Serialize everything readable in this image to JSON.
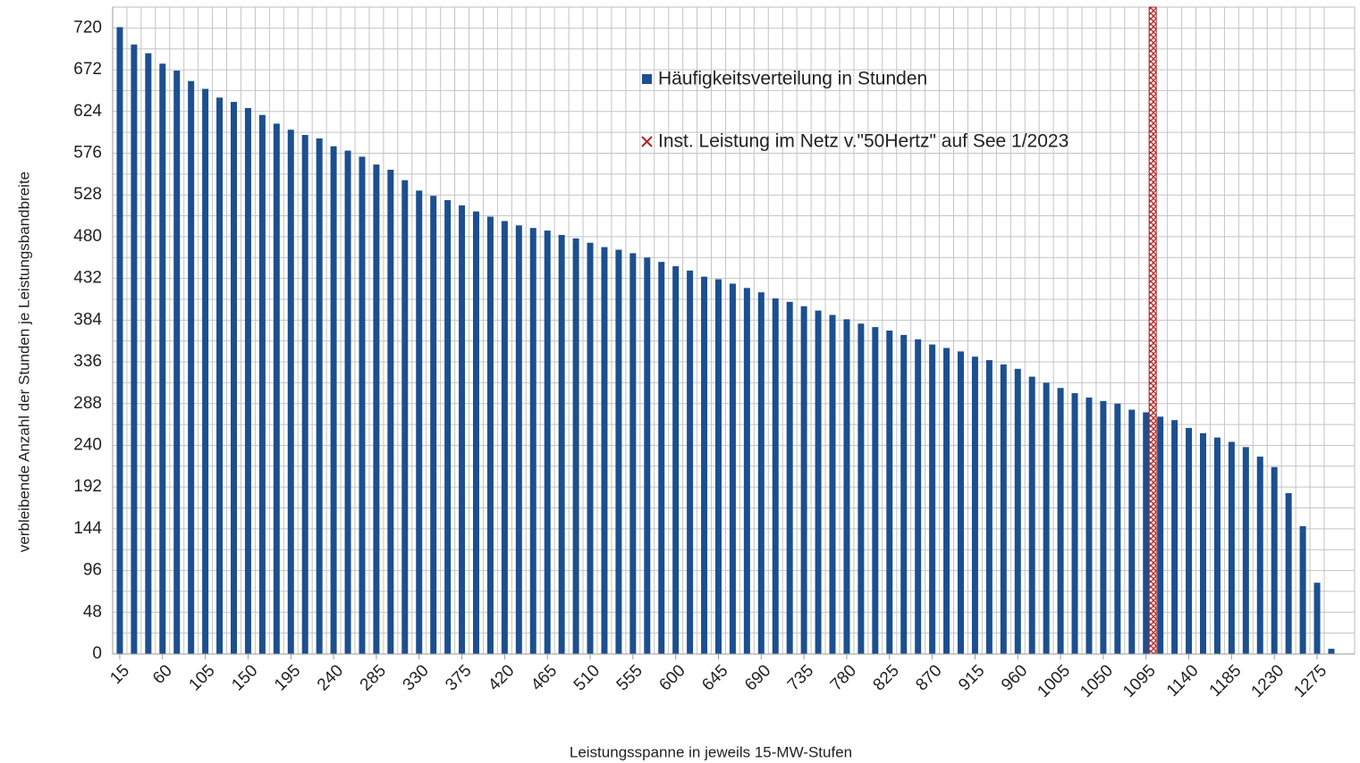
{
  "chart_data": {
    "type": "bar",
    "x_label": "Leistungsspanne in jeweils 15-MW-Stufen",
    "y_label": "verbleibende Anzahl der Stunden je Leistungsbandbreite",
    "x": [
      15,
      30,
      45,
      60,
      75,
      90,
      105,
      120,
      135,
      150,
      165,
      180,
      195,
      210,
      225,
      240,
      255,
      270,
      285,
      300,
      315,
      330,
      345,
      360,
      375,
      390,
      405,
      420,
      435,
      450,
      465,
      480,
      495,
      510,
      525,
      540,
      555,
      570,
      585,
      600,
      615,
      630,
      645,
      660,
      675,
      690,
      705,
      720,
      735,
      750,
      765,
      780,
      795,
      810,
      825,
      840,
      855,
      870,
      885,
      900,
      915,
      930,
      945,
      960,
      975,
      990,
      1005,
      1020,
      1035,
      1050,
      1065,
      1080,
      1095,
      1110,
      1125,
      1140,
      1155,
      1170,
      1185,
      1200,
      1215,
      1230,
      1245,
      1260,
      1275,
      1290
    ],
    "series": [
      {
        "name": "Häufigkeitsverteilung in Stunden",
        "color": "#1c4f8f",
        "values": [
          721,
          701,
          691,
          679,
          671,
          659,
          650,
          640,
          635,
          628,
          620,
          610,
          603,
          597,
          593,
          584,
          579,
          572,
          563,
          557,
          545,
          533,
          527,
          522,
          516,
          509,
          503,
          498,
          493,
          490,
          487,
          482,
          478,
          473,
          468,
          465,
          461,
          456,
          451,
          446,
          441,
          434,
          431,
          426,
          421,
          416,
          409,
          405,
          400,
          395,
          390,
          385,
          380,
          376,
          372,
          367,
          362,
          356,
          352,
          348,
          342,
          338,
          333,
          328,
          319,
          312,
          306,
          300,
          295,
          291,
          288,
          281,
          278,
          273,
          269,
          260,
          254,
          249,
          244,
          238,
          227,
          215,
          185,
          147,
          82,
          6
        ]
      }
    ],
    "reference_line": {
      "name": "Inst. Leistung im Netz v.\"50Hertz\" auf See 1/2023",
      "color": "#b22222",
      "x": 1102
    },
    "xlim": [
      7.5,
      1314.5
    ],
    "xticks": [
      15,
      60,
      105,
      150,
      195,
      240,
      285,
      330,
      375,
      420,
      465,
      510,
      555,
      600,
      645,
      690,
      735,
      780,
      825,
      870,
      915,
      960,
      1005,
      1050,
      1095,
      1140,
      1185,
      1230,
      1275
    ],
    "ylim": [
      0,
      744
    ],
    "yticks": [
      0,
      48,
      96,
      144,
      192,
      240,
      288,
      336,
      384,
      432,
      480,
      528,
      576,
      624,
      672,
      720
    ],
    "grid": true,
    "legend": "top-right"
  }
}
